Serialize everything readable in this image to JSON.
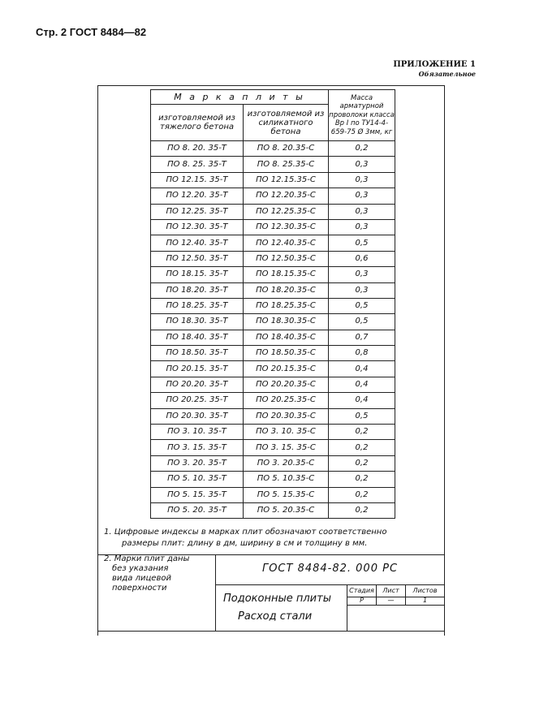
{
  "header": {
    "page_label": "Стр. 2 ГОСТ 8484—82",
    "appendix": "ПРИЛОЖЕНИЕ 1",
    "appendix_status": "Обязательное"
  },
  "table": {
    "group_header": "М а р к а   п л и т ы",
    "col1": "изготовляемой из тяжелого бетона",
    "col2": "изготовляемой из силикатного бетона",
    "col3": "Масса арматурной проволоки класса Вр I по ТУ14-4-659-75 Ø 3мм, кг",
    "rows": [
      [
        "ПО 8. 20. 35-Т",
        "ПО 8. 20.35-С",
        "0,2"
      ],
      [
        "ПО 8. 25. 35-Т",
        "ПО 8. 25.35-С",
        "0,3"
      ],
      [
        "ПО 12.15. 35-Т",
        "ПО 12.15.35-С",
        "0,3"
      ],
      [
        "ПО 12.20. 35-Т",
        "ПО 12.20.35-С",
        "0,3"
      ],
      [
        "ПО 12.25. 35-Т",
        "ПО 12.25.35-С",
        "0,3"
      ],
      [
        "ПО 12.30. 35-Т",
        "ПО 12.30.35-С",
        "0,3"
      ],
      [
        "ПО 12.40. 35-Т",
        "ПО 12.40.35-С",
        "0,5"
      ],
      [
        "ПО 12.50. 35-Т",
        "ПО 12.50.35-С",
        "0,6"
      ],
      [
        "ПО 18.15. 35-Т",
        "ПО 18.15.35-С",
        "0,3"
      ],
      [
        "ПО 18.20. 35-Т",
        "ПО 18.20.35-С",
        "0,3"
      ],
      [
        "ПО 18.25. 35-Т",
        "ПО 18.25.35-С",
        "0,5"
      ],
      [
        "ПО 18.30. 35-Т",
        "ПО 18.30.35-С",
        "0,5"
      ],
      [
        "ПО 18.40. 35-Т",
        "ПО 18.40.35-С",
        "0,7"
      ],
      [
        "ПО 18.50. 35-Т",
        "ПО 18.50.35-С",
        "0,8"
      ],
      [
        "ПО 20.15. 35-Т",
        "ПО 20.15.35-С",
        "0,4"
      ],
      [
        "ПО 20.20. 35-Т",
        "ПО 20.20.35-С",
        "0,4"
      ],
      [
        "ПО 20.25. 35-Т",
        "ПО 20.25.35-С",
        "0,4"
      ],
      [
        "ПО 20.30. 35-Т",
        "ПО 20.30.35-С",
        "0,5"
      ],
      [
        "ПО 3. 10. 35-Т",
        "ПО 3. 10. 35-С",
        "0,2"
      ],
      [
        "ПО 3. 15. 35-Т",
        "ПО 3. 15. 35-С",
        "0,2"
      ],
      [
        "ПО 3. 20. 35-Т",
        "ПО 3. 20.35-С",
        "0,2"
      ],
      [
        "ПО 5. 10. 35-Т",
        "ПО 5. 10.35-С",
        "0,2"
      ],
      [
        "ПО 5. 15. 35-Т",
        "ПО 5. 15.35-С",
        "0,2"
      ],
      [
        "ПО 5. 20. 35-Т",
        "ПО 5. 20.35-С",
        "0,2"
      ]
    ]
  },
  "notes": {
    "note1_line1": "1. Цифровые индексы в марках плит обозначают соответственно",
    "note1_line2": "размеры плит: длину в дм, ширину в см и толщину в мм.",
    "note2": [
      "2. Марки плит даны",
      "без указания",
      "вида лицевой",
      "поверхности"
    ]
  },
  "title_block": {
    "doc_code": "ГОСТ 8484-82. 000 РС",
    "title_line1": "Подоконные плиты",
    "title_line2": "Расход стали",
    "stage_label": "Стадия",
    "sheet_label": "Лист",
    "sheets_label": "Листов",
    "stage": "Р",
    "sheet": "—",
    "sheets": "1"
  }
}
